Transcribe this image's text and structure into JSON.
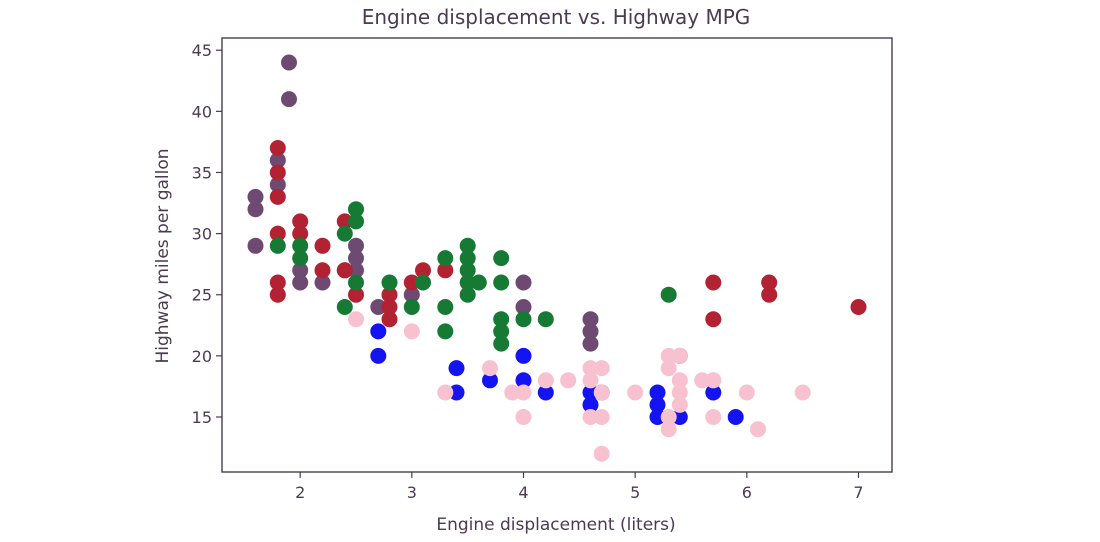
{
  "chart_data": {
    "type": "scatter",
    "title": "Engine displacement vs. Highway MPG",
    "xlabel": "Engine displacement (liters)",
    "ylabel": "Highway miles per gallon",
    "xlim": [
      1.3,
      7.3
    ],
    "ylim": [
      10.5,
      46
    ],
    "x_ticks": [
      2,
      3,
      4,
      5,
      6,
      7
    ],
    "y_ticks": [
      15,
      20,
      25,
      30,
      35,
      40,
      45
    ],
    "grid": false,
    "legend": "none",
    "marker_size": 8,
    "series": [
      {
        "color": "#6e4a72",
        "points": [
          [
            1.6,
            33
          ],
          [
            1.6,
            32
          ],
          [
            1.6,
            29
          ],
          [
            1.8,
            36
          ],
          [
            1.8,
            34
          ],
          [
            1.9,
            44
          ],
          [
            1.9,
            41
          ],
          [
            2.0,
            26
          ],
          [
            2.0,
            27
          ],
          [
            2.2,
            26
          ],
          [
            2.4,
            27
          ],
          [
            2.5,
            29
          ],
          [
            2.5,
            28
          ],
          [
            2.5,
            27
          ],
          [
            2.7,
            24
          ],
          [
            3.0,
            25
          ],
          [
            4.0,
            26
          ],
          [
            4.0,
            24
          ],
          [
            4.6,
            23
          ],
          [
            4.6,
            22
          ],
          [
            4.6,
            21
          ],
          [
            5.4,
            20
          ]
        ]
      },
      {
        "color": "#b22232",
        "points": [
          [
            1.8,
            37
          ],
          [
            1.8,
            35
          ],
          [
            1.8,
            33
          ],
          [
            1.8,
            30
          ],
          [
            1.8,
            26
          ],
          [
            1.8,
            25
          ],
          [
            2.0,
            31
          ],
          [
            2.0,
            30
          ],
          [
            2.2,
            29
          ],
          [
            2.2,
            27
          ],
          [
            2.4,
            31
          ],
          [
            2.4,
            27
          ],
          [
            2.5,
            25
          ],
          [
            2.8,
            25
          ],
          [
            2.8,
            24
          ],
          [
            2.8,
            23
          ],
          [
            3.0,
            26
          ],
          [
            3.1,
            27
          ],
          [
            3.3,
            27
          ],
          [
            5.7,
            26
          ],
          [
            5.7,
            23
          ],
          [
            6.2,
            26
          ],
          [
            6.2,
            25
          ],
          [
            7.0,
            24
          ]
        ]
      },
      {
        "color": "#167a35",
        "points": [
          [
            1.8,
            29
          ],
          [
            2.0,
            29
          ],
          [
            2.0,
            28
          ],
          [
            2.4,
            30
          ],
          [
            2.4,
            24
          ],
          [
            2.5,
            32
          ],
          [
            2.5,
            31
          ],
          [
            2.5,
            26
          ],
          [
            2.8,
            26
          ],
          [
            3.0,
            24
          ],
          [
            3.1,
            26
          ],
          [
            3.3,
            28
          ],
          [
            3.3,
            24
          ],
          [
            3.3,
            22
          ],
          [
            3.5,
            29
          ],
          [
            3.5,
            28
          ],
          [
            3.5,
            27
          ],
          [
            3.5,
            26
          ],
          [
            3.5,
            25
          ],
          [
            3.6,
            26
          ],
          [
            3.8,
            28
          ],
          [
            3.8,
            26
          ],
          [
            3.8,
            23
          ],
          [
            3.8,
            22
          ],
          [
            3.8,
            21
          ],
          [
            4.0,
            23
          ],
          [
            4.2,
            23
          ],
          [
            5.3,
            25
          ]
        ]
      },
      {
        "color": "#1414f0",
        "points": [
          [
            2.7,
            22
          ],
          [
            2.7,
            20
          ],
          [
            3.4,
            19
          ],
          [
            3.4,
            17
          ],
          [
            3.7,
            18
          ],
          [
            4.0,
            20
          ],
          [
            4.0,
            18
          ],
          [
            4.2,
            17
          ],
          [
            4.6,
            17
          ],
          [
            4.6,
            16
          ],
          [
            4.7,
            17
          ],
          [
            5.2,
            17
          ],
          [
            5.2,
            16
          ],
          [
            5.2,
            15
          ],
          [
            5.4,
            15
          ],
          [
            5.7,
            17
          ],
          [
            5.9,
            15
          ]
        ]
      },
      {
        "color": "#f7c1cf",
        "points": [
          [
            2.5,
            23
          ],
          [
            3.0,
            22
          ],
          [
            3.3,
            17
          ],
          [
            3.7,
            19
          ],
          [
            3.9,
            17
          ],
          [
            4.0,
            17
          ],
          [
            4.0,
            15
          ],
          [
            4.2,
            18
          ],
          [
            4.4,
            18
          ],
          [
            4.6,
            19
          ],
          [
            4.6,
            18
          ],
          [
            4.6,
            15
          ],
          [
            4.7,
            19
          ],
          [
            4.7,
            17
          ],
          [
            4.7,
            15
          ],
          [
            4.7,
            12
          ],
          [
            5.0,
            17
          ],
          [
            5.3,
            20
          ],
          [
            5.3,
            19
          ],
          [
            5.3,
            15
          ],
          [
            5.3,
            14
          ],
          [
            5.4,
            20
          ],
          [
            5.4,
            18
          ],
          [
            5.4,
            17
          ],
          [
            5.4,
            16
          ],
          [
            5.6,
            18
          ],
          [
            5.7,
            18
          ],
          [
            5.7,
            15
          ],
          [
            6.0,
            17
          ],
          [
            6.1,
            14
          ],
          [
            6.5,
            17
          ]
        ]
      }
    ]
  }
}
